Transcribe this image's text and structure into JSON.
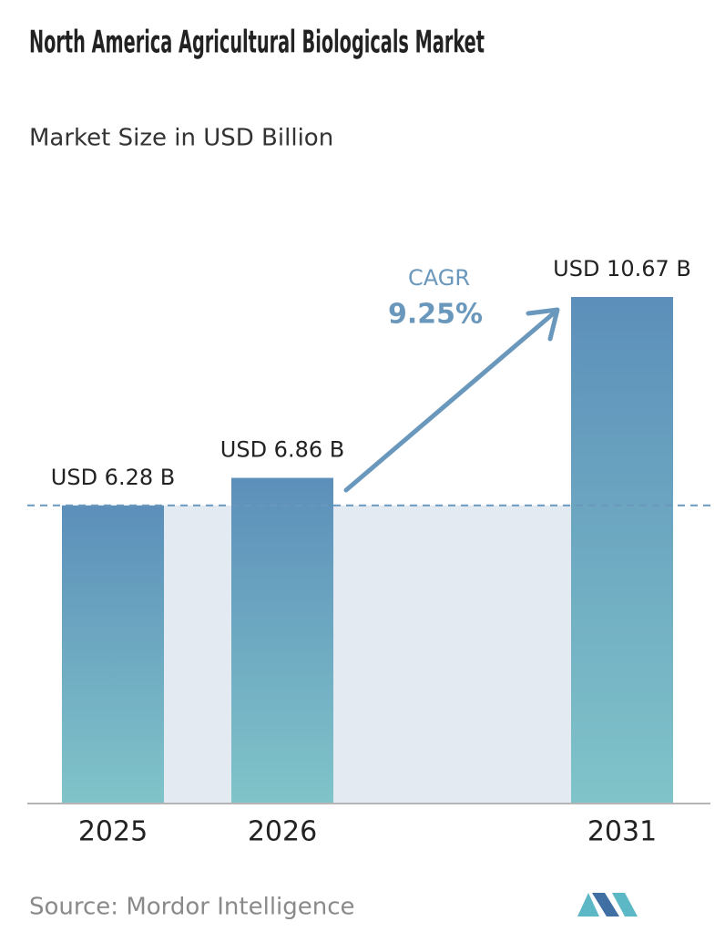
{
  "chart_data": {
    "type": "bar",
    "title": "North America Agricultural Biologicals Market",
    "subtitle": "Market Size in USD Billion",
    "categories": [
      "2025",
      "2026",
      "2031"
    ],
    "values": [
      6.28,
      6.86,
      10.67
    ],
    "value_labels": [
      "USD 6.28 B",
      "USD 6.86 B",
      "USD 10.67 B"
    ],
    "annotation": {
      "label": "CAGR",
      "value": "9.25%"
    },
    "source": "Source: Mordor Intelligence"
  }
}
